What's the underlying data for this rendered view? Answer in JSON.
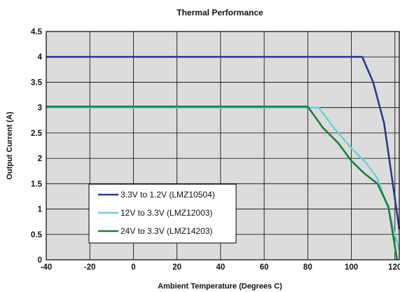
{
  "chart_data": {
    "type": "line",
    "title": "Thermal Performance",
    "xlabel": "Ambient Temperature (Degrees C)",
    "ylabel": "Output Current (A)",
    "xlim": [
      -40,
      122
    ],
    "ylim": [
      0,
      4.5
    ],
    "x_ticks": [
      -40,
      -20,
      0,
      20,
      40,
      60,
      80,
      100,
      120
    ],
    "y_ticks": [
      0,
      0.5,
      1,
      1.5,
      2,
      2.5,
      3,
      3.5,
      4,
      4.5
    ],
    "grid": true,
    "legend_position": "bottom-left",
    "colors": {
      "plot_background": "#dcdcdc",
      "grid": "#000000"
    },
    "series": [
      {
        "name": "3.3V to 1.2V (LMZ10504)",
        "color": "#2b3990",
        "points": [
          [
            -40,
            4.0
          ],
          [
            105,
            4.0
          ],
          [
            110,
            3.5
          ],
          [
            115,
            2.7
          ],
          [
            118,
            1.8
          ],
          [
            121,
            0.9
          ],
          [
            122,
            0.6
          ]
        ]
      },
      {
        "name": "12V to 3.3V (LMZ12003)",
        "color": "#6fcfd6",
        "points": [
          [
            -40,
            3.0
          ],
          [
            85,
            3.0
          ],
          [
            92,
            2.6
          ],
          [
            100,
            2.2
          ],
          [
            107,
            1.9
          ],
          [
            112,
            1.6
          ],
          [
            117,
            1.0
          ],
          [
            120,
            0.5
          ],
          [
            122,
            0.2
          ]
        ]
      },
      {
        "name": "24V to 3.3V (LMZ14203)",
        "color": "#1a7f3c",
        "points": [
          [
            -40,
            3.02
          ],
          [
            80,
            3.02
          ],
          [
            87,
            2.6
          ],
          [
            94,
            2.3
          ],
          [
            100,
            1.95
          ],
          [
            106,
            1.7
          ],
          [
            112,
            1.5
          ],
          [
            117,
            1.05
          ],
          [
            121,
            0.0
          ]
        ]
      }
    ]
  }
}
